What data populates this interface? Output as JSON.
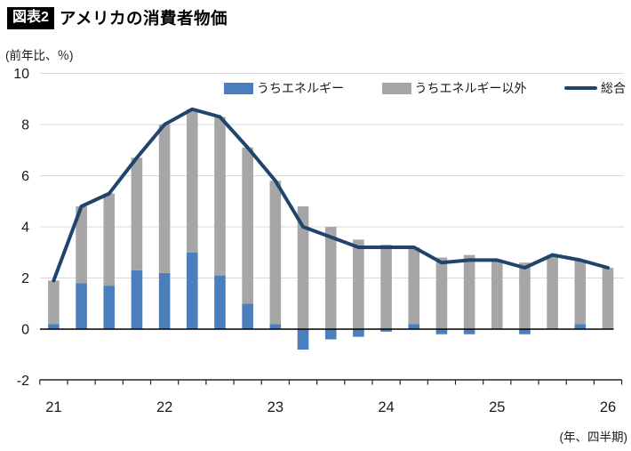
{
  "header": {
    "tag": "図表2",
    "title": "アメリカの消費者物価"
  },
  "y_axis_unit": "(前年比、％)",
  "x_axis_unit": "(年、四半期)",
  "legend": [
    {
      "label": "うちエネルギー",
      "type": "bar"
    },
    {
      "label": "うちエネルギー以外",
      "type": "bar"
    },
    {
      "label": "総合",
      "type": "line"
    }
  ],
  "chart_data": {
    "type": "bar",
    "subtype": "stacked-contribution-bars-with-line",
    "title": "アメリカの消費者物価",
    "xlabel": "(年、四半期)",
    "ylabel": "(前年比、％)",
    "ylim": [
      -2,
      10
    ],
    "y_ticks": [
      10,
      8,
      6,
      4,
      2,
      0,
      -2
    ],
    "x_tick_years": [
      "21",
      "22",
      "23",
      "24",
      "25",
      "26"
    ],
    "grid": "horizontal",
    "legend_position": "top-right-inside",
    "quarters": [
      "21Q1",
      "21Q2",
      "21Q3",
      "21Q4",
      "22Q1",
      "22Q2",
      "22Q3",
      "22Q4",
      "23Q1",
      "23Q2",
      "23Q3",
      "23Q4",
      "24Q1",
      "24Q2",
      "24Q3",
      "24Q4",
      "25Q1",
      "25Q2",
      "25Q3",
      "25Q4",
      "26Q1"
    ],
    "series": [
      {
        "name": "うちエネルギー",
        "type": "bar-stacked",
        "values": [
          0.2,
          1.8,
          1.7,
          2.3,
          2.2,
          3.0,
          2.1,
          1.0,
          0.2,
          -0.8,
          -0.4,
          -0.3,
          -0.1,
          0.2,
          -0.2,
          -0.2,
          0.0,
          -0.2,
          0.0,
          0.2,
          0.0
        ]
      },
      {
        "name": "うちエネルギー以外",
        "type": "bar-stacked",
        "values": [
          1.7,
          3.0,
          3.6,
          4.4,
          5.8,
          5.6,
          6.2,
          6.1,
          5.6,
          4.8,
          4.0,
          3.5,
          3.3,
          3.0,
          2.8,
          2.9,
          2.7,
          2.6,
          2.9,
          2.5,
          2.4
        ]
      },
      {
        "name": "総合",
        "type": "line",
        "values": [
          1.9,
          4.8,
          5.3,
          6.7,
          8.0,
          8.6,
          8.3,
          7.1,
          5.8,
          4.0,
          3.6,
          3.2,
          3.2,
          3.2,
          2.6,
          2.7,
          2.7,
          2.4,
          2.9,
          2.7,
          2.4
        ]
      }
    ],
    "colors": {
      "energy": "#4A7EBC",
      "non_energy": "#A6A6A6",
      "total": "#20456C",
      "grid": "#D9D9D9",
      "zero_line": "#000000",
      "axis": "#262626",
      "text": "#1A1A1A"
    }
  }
}
